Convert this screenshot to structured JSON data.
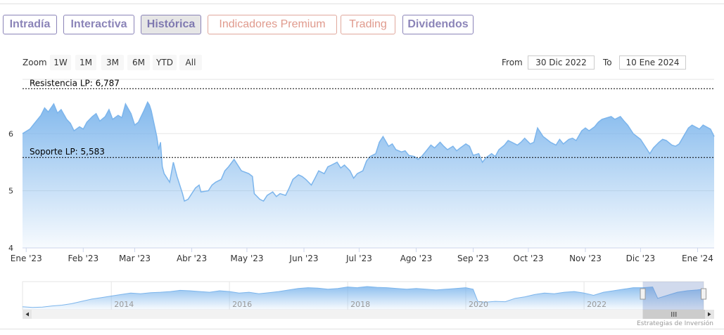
{
  "tabs": [
    {
      "label": "Intradía",
      "style": "purple",
      "active": false
    },
    {
      "label": "Interactiva",
      "style": "purple",
      "active": false
    },
    {
      "label": "Histórica",
      "style": "purple",
      "active": true
    },
    {
      "label": "Indicadores Premium",
      "style": "red",
      "active": false
    },
    {
      "label": "Trading",
      "style": "red",
      "active": false
    },
    {
      "label": "Dividendos",
      "style": "purple",
      "active": false
    }
  ],
  "zoom": {
    "label": "Zoom",
    "buttons": [
      "1W",
      "1M",
      "3M",
      "6M",
      "YTD",
      "All"
    ]
  },
  "range": {
    "from_label": "From",
    "from_value": "30 Dic 2022",
    "to_label": "To",
    "to_value": "10 Ene 2024"
  },
  "credit": "Estrategias de Inversión",
  "colors": {
    "series_line": "#7cb5ec",
    "area_top": "#7cb5ec",
    "navigator_mask": "#6685c2",
    "tab_purple": "#8b84b8",
    "tab_red": "#e09a8d"
  },
  "chart_data": {
    "type": "area",
    "ylim": [
      4,
      6.95
    ],
    "y_ticks": [
      4,
      5,
      6
    ],
    "y_tick_labels": [
      "4",
      "5",
      "6"
    ],
    "x_range": [
      "2022-12-30",
      "2024-01-10"
    ],
    "x_ticks": [
      {
        "date": "2023-01-01",
        "label": "Ene '23"
      },
      {
        "date": "2023-02-01",
        "label": "Feb '23"
      },
      {
        "date": "2023-03-01",
        "label": "Mar '23"
      },
      {
        "date": "2023-04-01",
        "label": "Abr '23"
      },
      {
        "date": "2023-05-01",
        "label": "May '23"
      },
      {
        "date": "2023-06-01",
        "label": "Jun '23"
      },
      {
        "date": "2023-07-01",
        "label": "Jul '23"
      },
      {
        "date": "2023-08-01",
        "label": "Ago '23"
      },
      {
        "date": "2023-09-01",
        "label": "Sep '23"
      },
      {
        "date": "2023-10-01",
        "label": "Oct '23"
      },
      {
        "date": "2023-11-01",
        "label": "Nov '23"
      },
      {
        "date": "2023-12-01",
        "label": "Dic '23"
      },
      {
        "date": "2024-01-01",
        "label": "Ene '24"
      }
    ],
    "grid": true,
    "series": [
      {
        "points": [
          [
            "2022-12-30",
            6.0
          ],
          [
            "2023-01-03",
            6.08
          ],
          [
            "2023-01-06",
            6.2
          ],
          [
            "2023-01-09",
            6.32
          ],
          [
            "2023-01-11",
            6.45
          ],
          [
            "2023-01-13",
            6.38
          ],
          [
            "2023-01-16",
            6.52
          ],
          [
            "2023-01-18",
            6.36
          ],
          [
            "2023-01-20",
            6.42
          ],
          [
            "2023-01-23",
            6.25
          ],
          [
            "2023-01-25",
            6.18
          ],
          [
            "2023-01-27",
            6.05
          ],
          [
            "2023-01-30",
            6.12
          ],
          [
            "2023-02-01",
            6.08
          ],
          [
            "2023-02-03",
            6.2
          ],
          [
            "2023-02-06",
            6.3
          ],
          [
            "2023-02-08",
            6.35
          ],
          [
            "2023-02-10",
            6.22
          ],
          [
            "2023-02-13",
            6.3
          ],
          [
            "2023-02-15",
            6.42
          ],
          [
            "2023-02-17",
            6.25
          ],
          [
            "2023-02-20",
            6.32
          ],
          [
            "2023-02-22",
            6.28
          ],
          [
            "2023-02-24",
            6.52
          ],
          [
            "2023-02-27",
            6.35
          ],
          [
            "2023-03-01",
            6.15
          ],
          [
            "2023-03-03",
            6.2
          ],
          [
            "2023-03-06",
            6.4
          ],
          [
            "2023-03-08",
            6.55
          ],
          [
            "2023-03-09",
            6.5
          ],
          [
            "2023-03-10",
            6.4
          ],
          [
            "2023-03-13",
            5.95
          ],
          [
            "2023-03-14",
            5.72
          ],
          [
            "2023-03-15",
            5.85
          ],
          [
            "2023-03-16",
            5.42
          ],
          [
            "2023-03-17",
            5.3
          ],
          [
            "2023-03-20",
            5.15
          ],
          [
            "2023-03-22",
            5.5
          ],
          [
            "2023-03-24",
            5.25
          ],
          [
            "2023-03-27",
            4.95
          ],
          [
            "2023-03-28",
            4.82
          ],
          [
            "2023-03-30",
            4.85
          ],
          [
            "2023-04-03",
            5.05
          ],
          [
            "2023-04-05",
            5.1
          ],
          [
            "2023-04-06",
            4.98
          ],
          [
            "2023-04-10",
            5.0
          ],
          [
            "2023-04-12",
            5.1
          ],
          [
            "2023-04-14",
            5.15
          ],
          [
            "2023-04-17",
            5.2
          ],
          [
            "2023-04-19",
            5.35
          ],
          [
            "2023-04-21",
            5.42
          ],
          [
            "2023-04-24",
            5.55
          ],
          [
            "2023-04-26",
            5.45
          ],
          [
            "2023-04-28",
            5.35
          ],
          [
            "2023-05-02",
            5.3
          ],
          [
            "2023-05-04",
            5.25
          ],
          [
            "2023-05-05",
            4.95
          ],
          [
            "2023-05-08",
            4.85
          ],
          [
            "2023-05-10",
            4.82
          ],
          [
            "2023-05-12",
            4.92
          ],
          [
            "2023-05-15",
            4.98
          ],
          [
            "2023-05-17",
            4.9
          ],
          [
            "2023-05-19",
            4.95
          ],
          [
            "2023-05-22",
            4.92
          ],
          [
            "2023-05-24",
            5.05
          ],
          [
            "2023-05-26",
            5.2
          ],
          [
            "2023-05-29",
            5.28
          ],
          [
            "2023-05-31",
            5.25
          ],
          [
            "2023-06-02",
            5.2
          ],
          [
            "2023-06-05",
            5.1
          ],
          [
            "2023-06-07",
            5.22
          ],
          [
            "2023-06-09",
            5.35
          ],
          [
            "2023-06-12",
            5.3
          ],
          [
            "2023-06-14",
            5.42
          ],
          [
            "2023-06-16",
            5.45
          ],
          [
            "2023-06-19",
            5.5
          ],
          [
            "2023-06-21",
            5.4
          ],
          [
            "2023-06-23",
            5.45
          ],
          [
            "2023-06-26",
            5.35
          ],
          [
            "2023-06-28",
            5.22
          ],
          [
            "2023-06-30",
            5.3
          ],
          [
            "2023-07-03",
            5.35
          ],
          [
            "2023-07-05",
            5.52
          ],
          [
            "2023-07-07",
            5.6
          ],
          [
            "2023-07-10",
            5.65
          ],
          [
            "2023-07-12",
            5.85
          ],
          [
            "2023-07-14",
            5.95
          ],
          [
            "2023-07-17",
            5.78
          ],
          [
            "2023-07-19",
            5.82
          ],
          [
            "2023-07-21",
            5.72
          ],
          [
            "2023-07-24",
            5.68
          ],
          [
            "2023-07-26",
            5.7
          ],
          [
            "2023-07-28",
            5.62
          ],
          [
            "2023-07-31",
            5.6
          ],
          [
            "2023-08-02",
            5.55
          ],
          [
            "2023-08-04",
            5.6
          ],
          [
            "2023-08-07",
            5.72
          ],
          [
            "2023-08-09",
            5.8
          ],
          [
            "2023-08-11",
            5.75
          ],
          [
            "2023-08-14",
            5.85
          ],
          [
            "2023-08-16",
            5.78
          ],
          [
            "2023-08-18",
            5.72
          ],
          [
            "2023-08-21",
            5.78
          ],
          [
            "2023-08-23",
            5.7
          ],
          [
            "2023-08-25",
            5.75
          ],
          [
            "2023-08-28",
            5.82
          ],
          [
            "2023-08-30",
            5.78
          ],
          [
            "2023-09-01",
            5.62
          ],
          [
            "2023-09-04",
            5.65
          ],
          [
            "2023-09-06",
            5.5
          ],
          [
            "2023-09-08",
            5.58
          ],
          [
            "2023-09-11",
            5.65
          ],
          [
            "2023-09-13",
            5.6
          ],
          [
            "2023-09-15",
            5.72
          ],
          [
            "2023-09-18",
            5.8
          ],
          [
            "2023-09-20",
            5.88
          ],
          [
            "2023-09-22",
            5.85
          ],
          [
            "2023-09-25",
            5.8
          ],
          [
            "2023-09-27",
            5.85
          ],
          [
            "2023-09-29",
            5.92
          ],
          [
            "2023-10-02",
            5.82
          ],
          [
            "2023-10-04",
            5.85
          ],
          [
            "2023-10-06",
            6.1
          ],
          [
            "2023-10-09",
            5.95
          ],
          [
            "2023-10-11",
            5.9
          ],
          [
            "2023-10-13",
            5.85
          ],
          [
            "2023-10-16",
            5.8
          ],
          [
            "2023-10-18",
            5.9
          ],
          [
            "2023-10-20",
            5.82
          ],
          [
            "2023-10-23",
            5.9
          ],
          [
            "2023-10-25",
            5.92
          ],
          [
            "2023-10-27",
            5.88
          ],
          [
            "2023-10-30",
            6.05
          ],
          [
            "2023-11-01",
            6.1
          ],
          [
            "2023-11-03",
            6.05
          ],
          [
            "2023-11-06",
            6.12
          ],
          [
            "2023-11-08",
            6.2
          ],
          [
            "2023-11-10",
            6.25
          ],
          [
            "2023-11-13",
            6.28
          ],
          [
            "2023-11-15",
            6.3
          ],
          [
            "2023-11-17",
            6.25
          ],
          [
            "2023-11-20",
            6.3
          ],
          [
            "2023-11-22",
            6.22
          ],
          [
            "2023-11-24",
            6.15
          ],
          [
            "2023-11-27",
            6.0
          ],
          [
            "2023-11-29",
            5.95
          ],
          [
            "2023-12-01",
            5.9
          ],
          [
            "2023-12-04",
            5.75
          ],
          [
            "2023-12-06",
            5.65
          ],
          [
            "2023-12-08",
            5.75
          ],
          [
            "2023-12-11",
            5.85
          ],
          [
            "2023-12-13",
            5.9
          ],
          [
            "2023-12-15",
            5.88
          ],
          [
            "2023-12-18",
            5.8
          ],
          [
            "2023-12-20",
            5.78
          ],
          [
            "2023-12-22",
            5.82
          ],
          [
            "2023-12-27",
            6.1
          ],
          [
            "2023-12-29",
            6.15
          ],
          [
            "2024-01-02",
            6.08
          ],
          [
            "2024-01-04",
            6.15
          ],
          [
            "2024-01-08",
            6.08
          ],
          [
            "2024-01-10",
            5.95
          ]
        ]
      }
    ],
    "plot_lines": [
      {
        "value": 6.787,
        "label": "Resistencia LP: 6,787"
      },
      {
        "value": 5.583,
        "label": "Soporte LP: 5,583"
      }
    ],
    "navigator": {
      "x_range": [
        "2012-07-01",
        "2024-01-10"
      ],
      "x_ticks": [
        {
          "date": "2014-01-01",
          "label": "2014"
        },
        {
          "date": "2016-01-01",
          "label": "2016"
        },
        {
          "date": "2018-01-01",
          "label": "2018"
        },
        {
          "date": "2020-01-01",
          "label": "2020"
        },
        {
          "date": "2022-01-01",
          "label": "2022"
        }
      ],
      "ylim": [
        3.5,
        7.2
      ],
      "points": [
        [
          "2012-07-01",
          3.9
        ],
        [
          "2012-09-01",
          3.8
        ],
        [
          "2012-11-01",
          3.85
        ],
        [
          "2013-01-01",
          4.0
        ],
        [
          "2013-03-01",
          4.1
        ],
        [
          "2013-05-01",
          4.3
        ],
        [
          "2013-07-01",
          4.6
        ],
        [
          "2013-09-01",
          4.9
        ],
        [
          "2013-11-01",
          5.1
        ],
        [
          "2014-01-01",
          5.3
        ],
        [
          "2014-03-01",
          5.5
        ],
        [
          "2014-05-01",
          5.7
        ],
        [
          "2014-07-01",
          5.6
        ],
        [
          "2014-09-01",
          5.75
        ],
        [
          "2014-11-01",
          5.8
        ],
        [
          "2015-01-01",
          5.9
        ],
        [
          "2015-03-01",
          6.05
        ],
        [
          "2015-05-01",
          6.0
        ],
        [
          "2015-07-01",
          5.9
        ],
        [
          "2015-09-01",
          5.8
        ],
        [
          "2015-11-01",
          6.0
        ],
        [
          "2016-01-01",
          5.9
        ],
        [
          "2016-03-01",
          5.7
        ],
        [
          "2016-05-01",
          5.8
        ],
        [
          "2016-07-01",
          5.6
        ],
        [
          "2016-09-01",
          5.75
        ],
        [
          "2016-11-01",
          5.9
        ],
        [
          "2017-01-01",
          6.1
        ],
        [
          "2017-03-01",
          6.3
        ],
        [
          "2017-05-01",
          6.4
        ],
        [
          "2017-07-01",
          6.35
        ],
        [
          "2017-09-01",
          6.2
        ],
        [
          "2017-11-01",
          6.3
        ],
        [
          "2018-01-01",
          6.5
        ],
        [
          "2018-03-01",
          6.4
        ],
        [
          "2018-05-01",
          6.55
        ],
        [
          "2018-07-01",
          6.45
        ],
        [
          "2018-09-01",
          6.4
        ],
        [
          "2018-11-01",
          6.3
        ],
        [
          "2019-01-01",
          6.2
        ],
        [
          "2019-03-01",
          6.3
        ],
        [
          "2019-05-01",
          6.2
        ],
        [
          "2019-07-01",
          6.1
        ],
        [
          "2019-09-01",
          6.2
        ],
        [
          "2019-11-01",
          6.3
        ],
        [
          "2020-01-01",
          6.4
        ],
        [
          "2020-02-15",
          6.2
        ],
        [
          "2020-03-15",
          4.6
        ],
        [
          "2020-05-01",
          4.5
        ],
        [
          "2020-07-01",
          4.6
        ],
        [
          "2020-09-01",
          4.55
        ],
        [
          "2020-11-01",
          5.0
        ],
        [
          "2021-01-01",
          5.2
        ],
        [
          "2021-03-01",
          5.5
        ],
        [
          "2021-05-01",
          5.7
        ],
        [
          "2021-07-01",
          5.6
        ],
        [
          "2021-09-01",
          5.8
        ],
        [
          "2021-11-01",
          5.9
        ],
        [
          "2022-01-01",
          5.7
        ],
        [
          "2022-03-01",
          5.4
        ],
        [
          "2022-05-01",
          5.8
        ],
        [
          "2022-07-01",
          6.0
        ],
        [
          "2022-09-01",
          6.2
        ],
        [
          "2022-11-01",
          6.4
        ],
        [
          "2023-01-01",
          6.4
        ],
        [
          "2023-03-01",
          6.5
        ],
        [
          "2023-04-01",
          5.0
        ],
        [
          "2023-06-01",
          5.4
        ],
        [
          "2023-08-01",
          5.8
        ],
        [
          "2023-10-01",
          6.0
        ],
        [
          "2023-12-01",
          6.1
        ],
        [
          "2024-01-10",
          6.2
        ]
      ]
    }
  }
}
